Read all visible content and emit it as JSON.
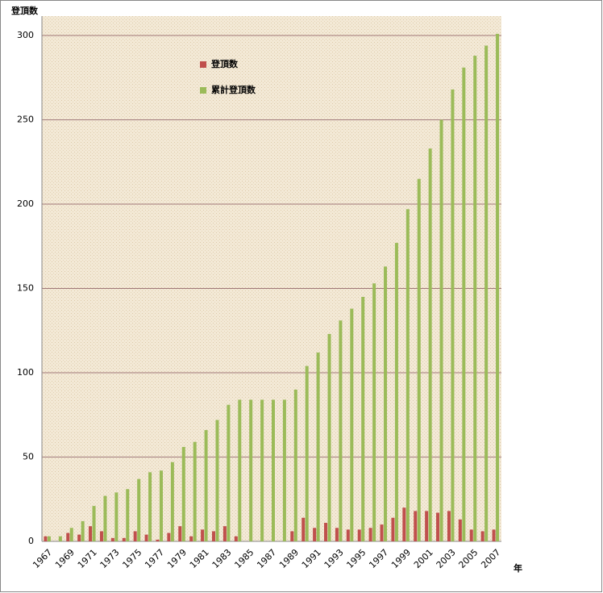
{
  "chart_data": {
    "type": "bar",
    "y_label": "登頂数",
    "x_label": "年",
    "categories": [
      "1967",
      null,
      "1969",
      null,
      "1971",
      null,
      "1973",
      null,
      "1975",
      null,
      "1977",
      null,
      "1979",
      null,
      "1981",
      null,
      "1983",
      null,
      "1985",
      null,
      "1987",
      null,
      "1989",
      null,
      "1991",
      null,
      "1993",
      null,
      "1995",
      null,
      "1997",
      null,
      "1999",
      null,
      "2001",
      null,
      "2003",
      null,
      "2005",
      null,
      "2007"
    ],
    "series": [
      {
        "name": "登頂数",
        "color": "#c0504d",
        "values": [
          3,
          0,
          5,
          4,
          9,
          6,
          2,
          2,
          6,
          4,
          1,
          5,
          9,
          3,
          7,
          6,
          9,
          3,
          0,
          0,
          0,
          0,
          6,
          14,
          8,
          11,
          8,
          7,
          7,
          8,
          10,
          14,
          20,
          18,
          18,
          17,
          18,
          13,
          7,
          6,
          7
        ]
      },
      {
        "name": "累計登頂数",
        "color": "#9bbb59",
        "values": [
          3,
          3,
          8,
          12,
          21,
          27,
          29,
          31,
          37,
          41,
          42,
          47,
          56,
          59,
          66,
          72,
          81,
          84,
          84,
          84,
          84,
          84,
          90,
          104,
          112,
          123,
          131,
          138,
          145,
          153,
          163,
          177,
          197,
          215,
          233,
          250,
          268,
          281,
          288,
          294,
          301
        ]
      }
    ],
    "ylim": [
      0,
      300
    ],
    "yticks": [
      0,
      50,
      100,
      150,
      200,
      250,
      300
    ],
    "grid": true,
    "legend": "top-left"
  }
}
